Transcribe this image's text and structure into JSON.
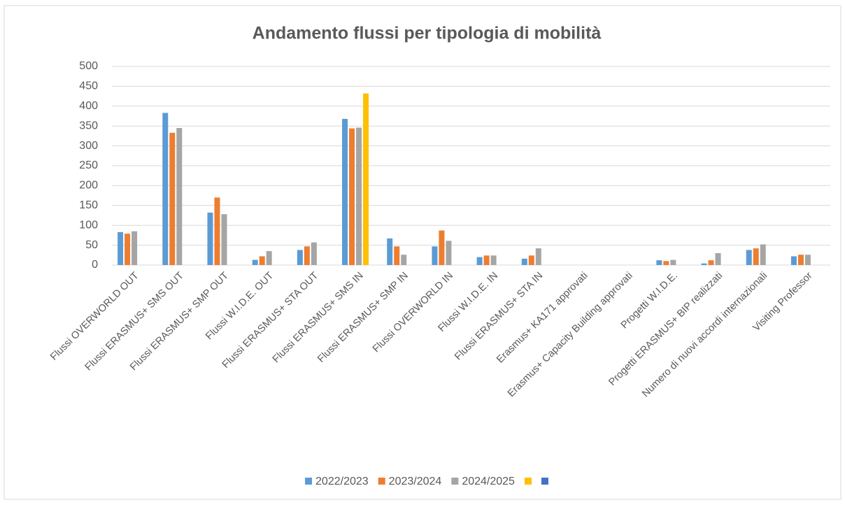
{
  "chart_data": {
    "type": "bar",
    "title": "Andamento flussi per tipologia di mobilità",
    "categories": [
      "Flussi OVERWORLD OUT",
      "Flussi ERASMUS+ SMS OUT",
      "Flussi ERASMUS+ SMP OUT",
      "Flussi W.I.D.E. OUT",
      "Flussi ERASMUS+ STA OUT",
      "Flussi ERASMUS+ SMS IN",
      "Flussi ERASMUS+ SMP IN",
      "Flussi OVERWORLD IN",
      "Flussi W.I.D.E. IN",
      "Flussi ERASMUS+ STA IN",
      "Erasmus+ KA171 approvati",
      "Erasmus+ Capacity Building approvati",
      "Progetti W.I.D.E.",
      "Progetti ERASMUS+ BIP realizzati",
      "Numero di nuovi accordi internazionali",
      "Visiting Professor"
    ],
    "series": [
      {
        "name": "2022/2023",
        "color": "#5b9bd5",
        "values": [
          83,
          383,
          132,
          13,
          38,
          368,
          67,
          47,
          20,
          16,
          null,
          null,
          12,
          4,
          38,
          22
        ]
      },
      {
        "name": "2023/2024",
        "color": "#ed7d31",
        "values": [
          79,
          333,
          170,
          22,
          47,
          344,
          47,
          87,
          24,
          24,
          null,
          null,
          10,
          12,
          42,
          26
        ]
      },
      {
        "name": "2024/2025",
        "color": "#a5a5a5",
        "values": [
          85,
          345,
          128,
          35,
          57,
          346,
          26,
          61,
          24,
          42,
          null,
          null,
          13,
          30,
          52,
          26
        ]
      },
      {
        "color": "#ffc000",
        "values": [
          null,
          null,
          null,
          null,
          null,
          432,
          null,
          null,
          null,
          null,
          null,
          null,
          null,
          null,
          null,
          null
        ]
      },
      {
        "color": "#4472c4",
        "values": [
          null,
          null,
          null,
          null,
          null,
          null,
          null,
          null,
          null,
          null,
          null,
          null,
          null,
          null,
          null,
          null
        ]
      }
    ],
    "ylim": [
      0,
      500
    ],
    "yticks": [
      0,
      50,
      100,
      150,
      200,
      250,
      300,
      350,
      400,
      450,
      500
    ],
    "grid": true,
    "legend": "bottom"
  }
}
